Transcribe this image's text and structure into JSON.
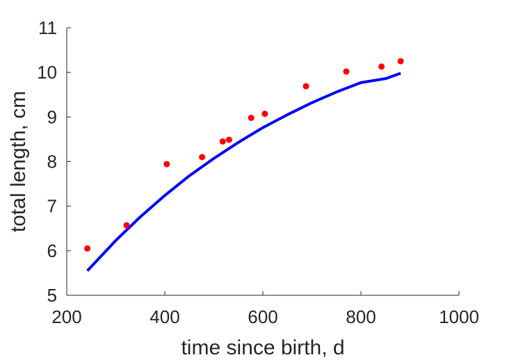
{
  "chart_data": {
    "type": "scatter",
    "title": "",
    "xlabel": "time since birth, d",
    "ylabel": "total length, cm",
    "xlim": [
      200,
      1000
    ],
    "ylim": [
      5,
      11
    ],
    "xticks": [
      200,
      400,
      600,
      800,
      1000
    ],
    "yticks": [
      5,
      6,
      7,
      8,
      9,
      10,
      11
    ],
    "grid": false,
    "legend": "none",
    "series": [
      {
        "kind": "scatter",
        "color": "#ff0000",
        "points": [
          [
            242,
            6.05
          ],
          [
            322,
            6.57
          ],
          [
            404,
            7.94
          ],
          [
            476,
            8.1
          ],
          [
            518,
            8.45
          ],
          [
            531,
            8.49
          ],
          [
            576,
            8.98
          ],
          [
            604,
            9.07
          ],
          [
            688,
            9.69
          ],
          [
            770,
            10.02
          ],
          [
            842,
            10.13
          ],
          [
            881,
            10.25
          ]
        ]
      },
      {
        "kind": "line",
        "color": "#0000ff",
        "points": [
          [
            242,
            5.55
          ],
          [
            300,
            6.23
          ],
          [
            350,
            6.76
          ],
          [
            400,
            7.24
          ],
          [
            450,
            7.68
          ],
          [
            500,
            8.07
          ],
          [
            550,
            8.43
          ],
          [
            600,
            8.76
          ],
          [
            650,
            9.05
          ],
          [
            700,
            9.32
          ],
          [
            750,
            9.56
          ],
          [
            800,
            9.77
          ],
          [
            850,
            9.86
          ],
          [
            881,
            9.98
          ]
        ]
      }
    ]
  }
}
